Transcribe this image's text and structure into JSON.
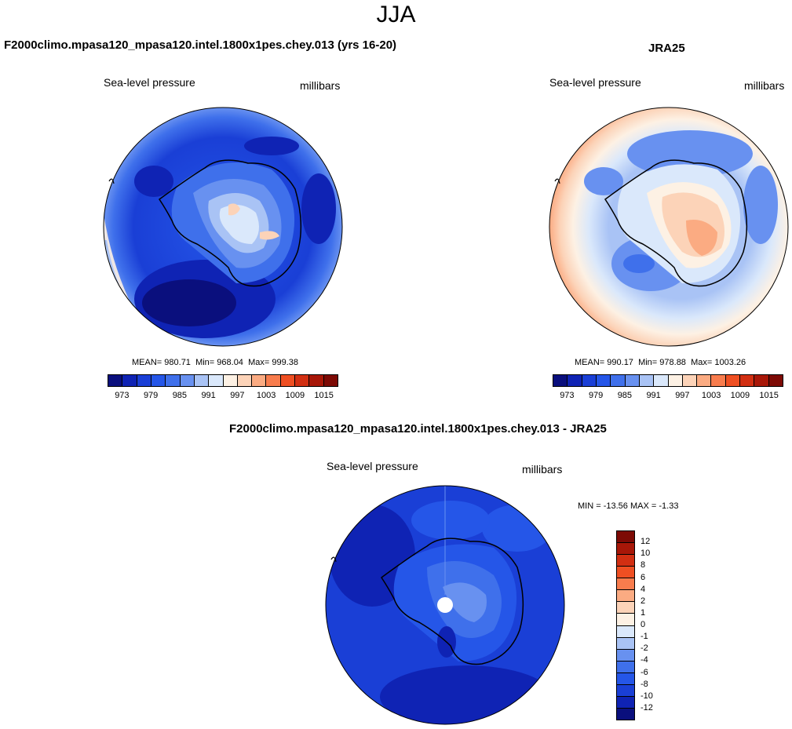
{
  "page": {
    "season": "JJA"
  },
  "chart_data": [
    {
      "type": "heatmap",
      "panel": "model",
      "title": "F2000climo.mpasa120_mpasa120.intel.1800x1pes.chey.013 (yrs 16-20)",
      "left_label": "Sea-level pressure",
      "right_label": "millibars",
      "stats": {
        "mean_label": "MEAN=",
        "mean": "980.71",
        "min_label": "Min=",
        "min": "968.04",
        "max_label": "Max=",
        "max": "999.38"
      },
      "levels": [
        973,
        976,
        979,
        982,
        985,
        988,
        991,
        994,
        997,
        1000,
        1003,
        1006,
        1009,
        1012,
        1015
      ],
      "tick_labels": [
        "973",
        "979",
        "985",
        "991",
        "997",
        "1003",
        "1009",
        "1015"
      ],
      "colors": [
        "#0a0f7d",
        "#0f23b4",
        "#1a3fd6",
        "#2556e8",
        "#3f70eb",
        "#6891f0",
        "#a9c3f5",
        "#dae8fb",
        "#fdf1e4",
        "#fcd3b8",
        "#fbab82",
        "#f87c4d",
        "#ef4f22",
        "#d22f12",
        "#a81708",
        "#7d0a05"
      ]
    },
    {
      "type": "heatmap",
      "panel": "obs",
      "title": "JRA25",
      "left_label": "Sea-level pressure",
      "right_label": "millibars",
      "stats": {
        "mean_label": "MEAN=",
        "mean": "990.17",
        "min_label": "Min=",
        "min": "978.88",
        "max_label": "Max=",
        "max": "1003.26"
      },
      "levels": [
        973,
        976,
        979,
        982,
        985,
        988,
        991,
        994,
        997,
        1000,
        1003,
        1006,
        1009,
        1012,
        1015
      ],
      "tick_labels": [
        "973",
        "979",
        "985",
        "991",
        "997",
        "1003",
        "1009",
        "1015"
      ],
      "colors": [
        "#0a0f7d",
        "#0f23b4",
        "#1a3fd6",
        "#2556e8",
        "#3f70eb",
        "#6891f0",
        "#a9c3f5",
        "#dae8fb",
        "#fdf1e4",
        "#fcd3b8",
        "#fbab82",
        "#f87c4d",
        "#ef4f22",
        "#d22f12",
        "#a81708",
        "#7d0a05"
      ]
    },
    {
      "type": "heatmap",
      "panel": "diff",
      "title": "F2000climo.mpasa120_mpasa120.intel.1800x1pes.chey.013 - JRA25",
      "left_label": "Sea-level pressure",
      "right_label": "millibars",
      "stats": {
        "min_label": "MIN =",
        "min": "-13.56",
        "max_label": "MAX =",
        "max": "-1.33"
      },
      "levels": [
        12,
        10,
        8,
        6,
        4,
        2,
        1,
        0,
        -1,
        -2,
        -4,
        -6,
        -8,
        -10,
        -12
      ],
      "tick_labels": [
        "12",
        "10",
        "8",
        "6",
        "4",
        "2",
        "1",
        "0",
        "-1",
        "-2",
        "-4",
        "-6",
        "-8",
        "-10",
        "-12"
      ],
      "colors": [
        "#7d0a05",
        "#a81708",
        "#d22f12",
        "#ef4f22",
        "#f87c4d",
        "#fbab82",
        "#fcd3b8",
        "#fdf1e4",
        "#dae8fb",
        "#a9c3f5",
        "#6891f0",
        "#3f70eb",
        "#2556e8",
        "#1a3fd6",
        "#0f23b4",
        "#0a0f7d"
      ]
    }
  ]
}
